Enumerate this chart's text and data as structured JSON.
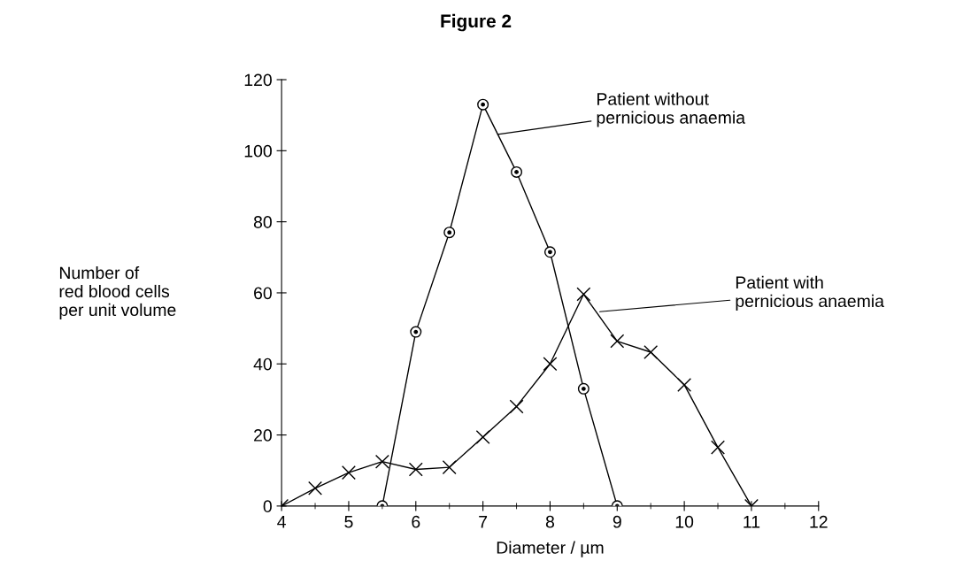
{
  "chart_data": {
    "type": "line",
    "title": "Figure 2",
    "xlabel": "Diameter / µm",
    "ylabel": "Number of\nred blood cells\nper unit volume",
    "series": [
      {
        "x": [
          5.5,
          6,
          6.5,
          7,
          7.5,
          8,
          8.5,
          9
        ],
        "values": [
          0,
          49,
          77,
          113,
          94,
          71.5,
          33,
          0
        ],
        "color": "#000000",
        "marker": "circle"
      },
      {
        "x": [
          4,
          4.5,
          5,
          5.5,
          6,
          6.5,
          7,
          7.5,
          8,
          8.5,
          9,
          9.5,
          10,
          10.5,
          11
        ],
        "values": [
          0,
          5,
          9.4,
          12.5,
          10.3,
          10.9,
          19.4,
          28,
          40,
          59.6,
          46.4,
          43.3,
          34.1,
          16.5,
          0
        ],
        "color": "#000000",
        "marker": "cross"
      }
    ],
    "annotations": [
      {
        "text": "Patient without\npernicious anaemia",
        "x": 7.22,
        "y": 104.6
      },
      {
        "text": "Patient with\npernicious anaemia",
        "x": 8.74,
        "y": 54.7
      }
    ],
    "xlim": [
      4,
      12
    ],
    "xticks": [
      4,
      5,
      6,
      7,
      8,
      9,
      10,
      11,
      12
    ],
    "ylim": [
      0,
      120
    ],
    "yticks": [
      0,
      20,
      40,
      60,
      80,
      100,
      120
    ],
    "grid": false,
    "legend": false,
    "line_style": "solid"
  }
}
